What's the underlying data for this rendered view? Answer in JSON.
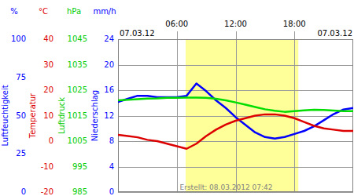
{
  "chart_data": {
    "type": "line",
    "x": [
      0,
      1,
      2,
      3,
      4,
      5,
      6,
      7,
      8,
      9,
      10,
      11,
      12,
      13,
      14,
      15,
      16,
      17,
      18,
      19,
      20,
      21,
      22,
      23,
      24
    ],
    "xlim": [
      0,
      24
    ],
    "xticks": [
      {
        "value": 6,
        "label": "06:00"
      },
      {
        "value": 12,
        "label": "12:00"
      },
      {
        "value": 18,
        "label": "18:00"
      }
    ],
    "date_labels": [
      "07.03.12",
      "07.03.12"
    ],
    "footer": "Erstellt: 08.03.2012 07:42",
    "daylight": [
      6.9,
      18.4
    ],
    "grid": true,
    "axes": {
      "y": {
        "unit": "%",
        "label": "Luftfeuchtigkeit",
        "color": "#0000ff",
        "lim": [
          0,
          100
        ],
        "ticks": [
          0,
          25,
          50,
          75,
          100
        ]
      },
      "y2": {
        "unit": "°C",
        "label": "Temperatur",
        "color": "#dd0000",
        "lim": [
          -20,
          40
        ],
        "ticks": [
          -20,
          -10,
          0,
          10,
          20,
          30,
          40
        ]
      },
      "y3": {
        "unit": "hPa",
        "label": "Luftdruck",
        "color": "#00cc00",
        "lim": [
          985,
          1045
        ],
        "ticks": [
          985,
          995,
          1005,
          1015,
          1025,
          1035,
          1045
        ]
      },
      "y4": {
        "unit": "mm/h",
        "label": "Niederschlag",
        "color": "#0000ff",
        "lim": [
          0,
          24
        ],
        "ticks": [
          0,
          4,
          8,
          12,
          16,
          20,
          24
        ]
      }
    },
    "series": [
      {
        "axis": "y",
        "color": "#0000ff",
        "values": [
          59,
          61,
          63,
          63,
          62,
          62,
          62,
          63,
          71,
          66,
          60,
          55,
          49,
          44,
          39,
          36,
          35,
          36,
          38,
          40,
          43,
          47,
          51,
          54,
          55
        ]
      },
      {
        "axis": "y2",
        "color": "#dd0000",
        "values": [
          2.5,
          2,
          1.5,
          0.5,
          0,
          -1,
          -2,
          -3,
          -1,
          2,
          4.5,
          6.5,
          8,
          9,
          10,
          10.5,
          10.5,
          10,
          9,
          7.5,
          6,
          5,
          4.5,
          4,
          4
        ]
      },
      {
        "axis": "y3",
        "color": "#00dd00",
        "values": [
          1021,
          1021.2,
          1021.5,
          1021.7,
          1021.8,
          1022,
          1022,
          1022.1,
          1022.1,
          1022,
          1021.6,
          1021,
          1020.2,
          1019.3,
          1018.4,
          1017.5,
          1016.9,
          1016.5,
          1016.8,
          1017.1,
          1017.3,
          1017.2,
          1017,
          1016.8,
          1016.8
        ]
      }
    ]
  }
}
